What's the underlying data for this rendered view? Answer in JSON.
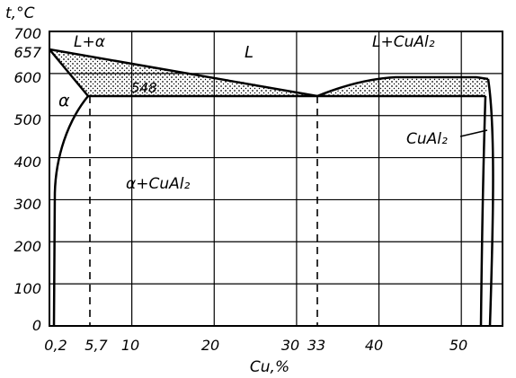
{
  "chart_data": {
    "type": "phase-diagram",
    "ylabel": "t,°C",
    "xlabel": "Cu,%",
    "y_ticks": [
      "0",
      "100",
      "200",
      "300",
      "400",
      "500",
      "600",
      "700"
    ],
    "extra_y_ticks": [
      "657"
    ],
    "x_ticks": [
      "0,2",
      "5,7",
      "10",
      "20",
      "30",
      "33",
      "40",
      "50"
    ],
    "xlim": [
      0,
      55
    ],
    "ylim": [
      0,
      700
    ],
    "grid": true,
    "special_points": {
      "melting_al": {
        "x": 0,
        "y": 657
      },
      "eutectic": {
        "x": 33,
        "y": 548
      },
      "alpha_max_solubility": {
        "x": 5.7,
        "y": 548
      },
      "cual2_melt": {
        "x": 53,
        "y": 590
      }
    },
    "region_labels": {
      "liquid": "L",
      "liquid_alpha": "L+α",
      "liquid_cual2": "L+CuAl₂",
      "alpha": "α",
      "alpha_cual2": "α+CuAl₂",
      "cual2": "CuAl₂"
    },
    "eutectic_temp_label": "548",
    "pattern_color": "#000000"
  }
}
